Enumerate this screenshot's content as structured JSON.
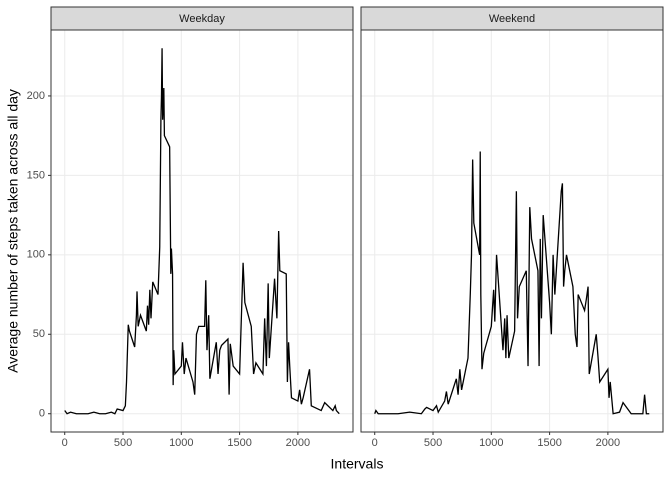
{
  "chart_data": {
    "type": "line",
    "xlabel": "Intervals",
    "ylabel": "Average number of steps taken across all day",
    "color": "#000000",
    "grid": true,
    "xlim": [
      -117.75,
      2472.75
    ],
    "xticks": [
      0,
      500,
      1000,
      1500,
      2000
    ],
    "ylim": [
      -11.5,
      241.5
    ],
    "yticks": [
      0,
      50,
      100,
      150,
      200
    ],
    "panels": [
      {
        "title": "Weekday",
        "x": [
          0,
          20,
          50,
          100,
          150,
          200,
          250,
          300,
          350,
          400,
          430,
          450,
          500,
          520,
          530,
          545,
          555,
          600,
          615,
          620,
          630,
          650,
          700,
          710,
          720,
          730,
          740,
          755,
          800,
          815,
          825,
          830,
          835,
          840,
          850,
          855,
          900,
          910,
          915,
          925,
          930,
          935,
          945,
          1000,
          1010,
          1025,
          1040,
          1100,
          1115,
          1130,
          1150,
          1200,
          1210,
          1220,
          1235,
          1245,
          1300,
          1315,
          1330,
          1345,
          1400,
          1410,
          1420,
          1445,
          1500,
          1530,
          1545,
          1600,
          1620,
          1640,
          1700,
          1715,
          1730,
          1745,
          1755,
          1800,
          1820,
          1835,
          1845,
          1900,
          1910,
          1920,
          1930,
          1945,
          2000,
          2015,
          2030,
          2045,
          2100,
          2115,
          2200,
          2230,
          2300,
          2320,
          2330,
          2355
        ],
        "values": [
          2,
          0,
          1,
          0,
          0,
          0,
          1,
          0,
          0,
          1,
          0,
          3,
          2,
          5,
          20,
          56,
          52,
          42,
          62,
          77,
          55,
          62,
          52,
          68,
          56,
          78,
          60,
          83,
          75,
          105,
          185,
          200,
          230,
          185,
          205,
          175,
          168,
          88,
          104,
          88,
          18,
          40,
          25,
          30,
          45,
          25,
          35,
          20,
          12,
          50,
          55,
          55,
          84,
          40,
          62,
          22,
          45,
          25,
          40,
          43,
          47,
          12,
          44,
          30,
          25,
          95,
          70,
          55,
          25,
          32,
          25,
          60,
          30,
          82,
          35,
          85,
          60,
          115,
          90,
          88,
          20,
          45,
          30,
          10,
          8,
          15,
          6,
          10,
          28,
          5,
          2,
          7,
          2,
          5,
          2,
          0
        ]
      },
      {
        "title": "Weekend",
        "x": [
          0,
          10,
          30,
          100,
          200,
          300,
          400,
          430,
          445,
          500,
          530,
          545,
          600,
          615,
          630,
          700,
          715,
          730,
          745,
          800,
          820,
          830,
          840,
          850,
          900,
          905,
          910,
          920,
          935,
          950,
          1000,
          1020,
          1030,
          1045,
          1100,
          1115,
          1125,
          1135,
          1150,
          1200,
          1215,
          1225,
          1240,
          1300,
          1315,
          1330,
          1345,
          1400,
          1410,
          1420,
          1430,
          1445,
          1500,
          1515,
          1530,
          1545,
          1600,
          1610,
          1620,
          1630,
          1645,
          1700,
          1720,
          1735,
          1745,
          1800,
          1815,
          1830,
          1840,
          1900,
          1915,
          1930,
          2000,
          2010,
          2020,
          2030,
          2045,
          2100,
          2130,
          2200,
          2300,
          2315,
          2330,
          2355
        ],
        "values": [
          0,
          2,
          0,
          0,
          0,
          1,
          0,
          3,
          4,
          2,
          5,
          1,
          8,
          14,
          6,
          22,
          12,
          28,
          15,
          35,
          76,
          100,
          160,
          120,
          100,
          165,
          75,
          28,
          38,
          42,
          55,
          78,
          58,
          100,
          40,
          60,
          35,
          62,
          35,
          52,
          140,
          60,
          80,
          90,
          30,
          130,
          110,
          90,
          30,
          110,
          60,
          125,
          70,
          50,
          100,
          75,
          140,
          145,
          80,
          90,
          100,
          80,
          50,
          42,
          75,
          65,
          72,
          80,
          25,
          50,
          36,
          20,
          28,
          10,
          20,
          12,
          0,
          1,
          7,
          0,
          0,
          12,
          0,
          0
        ]
      }
    ]
  }
}
